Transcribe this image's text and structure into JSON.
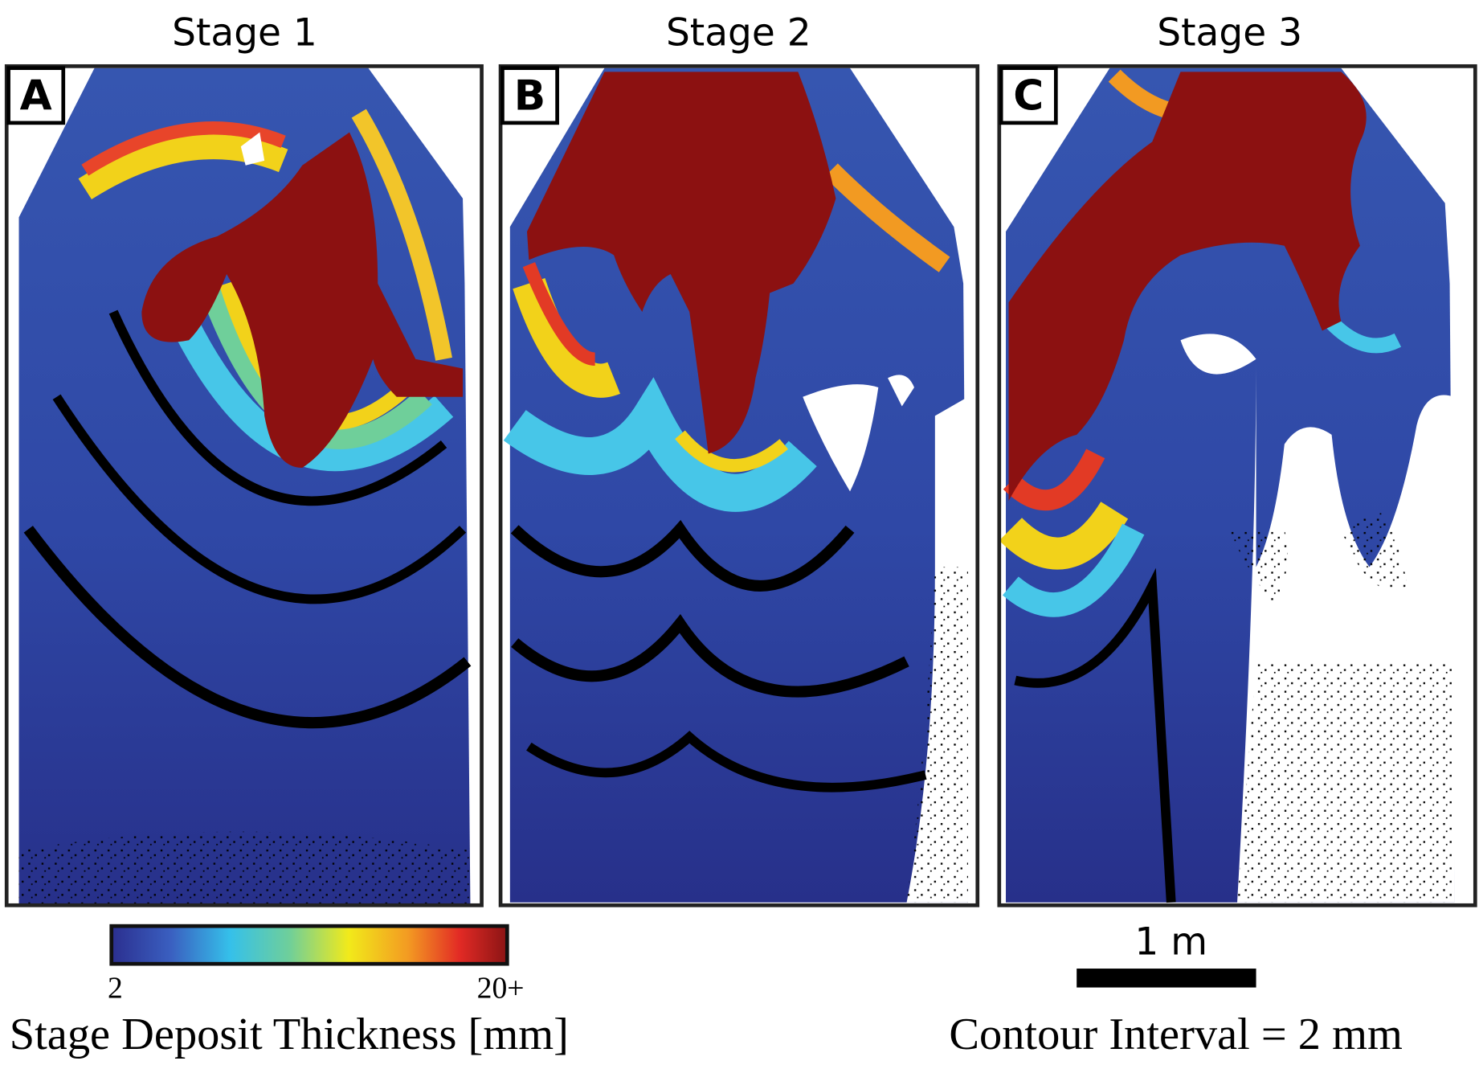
{
  "panels": [
    {
      "title": "Stage 1",
      "label": "A"
    },
    {
      "title": "Stage 2",
      "label": "B"
    },
    {
      "title": "Stage 3",
      "label": "C"
    }
  ],
  "colorbar": {
    "min_label": "2",
    "max_label": "20+",
    "title": "Stage Deposit Thickness [mm]"
  },
  "scale_bar": {
    "label": "1 m"
  },
  "contour_note": "Contour Interval = 2 mm"
}
